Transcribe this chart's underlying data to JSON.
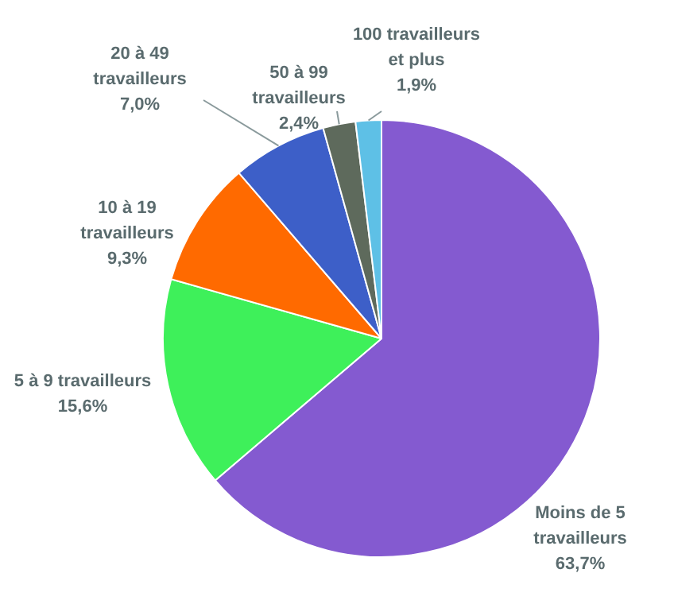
{
  "chart_data": {
    "type": "pie",
    "categories": [
      "Moins de 5 travailleurs",
      "5 à 9 travailleurs",
      "10 à 19 travailleurs",
      "20 à 49 travailleurs",
      "50 à 99 travailleurs",
      "100 travailleurs et plus"
    ],
    "values": [
      63.7,
      15.6,
      9.3,
      7.0,
      2.4,
      1.9
    ],
    "value_labels": [
      "63,7%",
      "15,6%",
      "9,3%",
      "7,0%",
      "2,4%",
      "1,9%"
    ],
    "colors": [
      "#845ad0",
      "#3ef05a",
      "#ff6a00",
      "#3d5fc8",
      "#5e6a5c",
      "#5ec0e6"
    ],
    "legend": false
  }
}
